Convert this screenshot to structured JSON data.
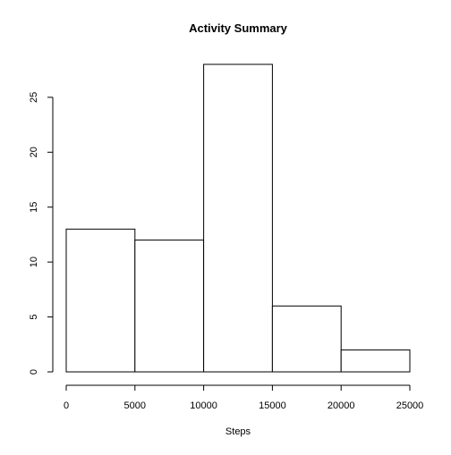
{
  "chart_data": {
    "type": "bar",
    "title": "Activity Summary",
    "xlabel": "Steps",
    "ylabel": "",
    "bins": [
      {
        "start": 0,
        "end": 5000,
        "count": 13
      },
      {
        "start": 5000,
        "end": 10000,
        "count": 12
      },
      {
        "start": 10000,
        "end": 15000,
        "count": 28
      },
      {
        "start": 15000,
        "end": 20000,
        "count": 6
      },
      {
        "start": 20000,
        "end": 25000,
        "count": 2
      }
    ],
    "xlim": [
      0,
      25000
    ],
    "ylim": [
      0,
      28
    ],
    "xticks": [
      0,
      5000,
      10000,
      15000,
      20000,
      25000
    ],
    "xtick_labels": [
      "0",
      "5000",
      "10000",
      "15000",
      "20000",
      "25000"
    ],
    "yticks": [
      0,
      5,
      10,
      15,
      20,
      25
    ],
    "ytick_labels": [
      "0",
      "5",
      "10",
      "15",
      "20",
      "25"
    ],
    "grid": false,
    "bar_fill": "#ffffff",
    "bar_stroke": "#000000"
  }
}
